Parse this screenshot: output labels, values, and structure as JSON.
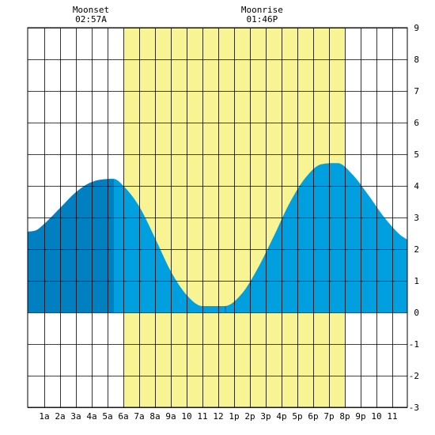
{
  "chart_data": {
    "type": "area",
    "title": "",
    "xlabel": "",
    "ylabel": "",
    "xlim": [
      -0.05,
      23.95
    ],
    "ylim": [
      -3,
      9
    ],
    "x_tick_labels": [
      {
        "x": 1,
        "label": "1a"
      },
      {
        "x": 2,
        "label": "2a"
      },
      {
        "x": 3,
        "label": "3a"
      },
      {
        "x": 4,
        "label": "4a"
      },
      {
        "x": 5,
        "label": "5a"
      },
      {
        "x": 6,
        "label": "6a"
      },
      {
        "x": 7,
        "label": "7a"
      },
      {
        "x": 8,
        "label": "8a"
      },
      {
        "x": 9,
        "label": "9a"
      },
      {
        "x": 10,
        "label": "10"
      },
      {
        "x": 11,
        "label": "11"
      },
      {
        "x": 12,
        "label": "12"
      },
      {
        "x": 13,
        "label": "1p"
      },
      {
        "x": 14,
        "label": "2p"
      },
      {
        "x": 15,
        "label": "3p"
      },
      {
        "x": 16,
        "label": "4p"
      },
      {
        "x": 17,
        "label": "5p"
      },
      {
        "x": 18,
        "label": "6p"
      },
      {
        "x": 19,
        "label": "7p"
      },
      {
        "x": 20,
        "label": "8p"
      },
      {
        "x": 21,
        "label": "9p"
      },
      {
        "x": 22,
        "label": "10"
      },
      {
        "x": 23,
        "label": "11"
      }
    ],
    "y_ticks": [
      -3,
      -2,
      -1,
      0,
      1,
      2,
      3,
      4,
      5,
      6,
      7,
      8,
      9
    ],
    "grid": true,
    "series": [
      {
        "points": [
          [
            -0.05,
            2.55
          ],
          [
            0.5,
            2.6
          ],
          [
            1.0,
            2.8
          ],
          [
            2.0,
            3.3
          ],
          [
            3.0,
            3.8
          ],
          [
            4.0,
            4.12
          ],
          [
            5.4,
            4.22
          ],
          [
            6.0,
            4.0
          ],
          [
            7.0,
            3.35
          ],
          [
            8.0,
            2.35
          ],
          [
            9.0,
            1.3
          ],
          [
            10.0,
            0.55
          ],
          [
            11.0,
            0.2
          ],
          [
            12.4,
            0.2
          ],
          [
            13.5,
            0.6
          ],
          [
            14.5,
            1.4
          ],
          [
            15.5,
            2.4
          ],
          [
            16.5,
            3.45
          ],
          [
            17.5,
            4.25
          ],
          [
            18.5,
            4.68
          ],
          [
            19.55,
            4.72
          ],
          [
            20.5,
            4.35
          ],
          [
            21.5,
            3.7
          ],
          [
            22.5,
            3.0
          ],
          [
            23.5,
            2.45
          ],
          [
            23.95,
            2.3
          ]
        ]
      }
    ],
    "daylight": {
      "start": 6.02,
      "end": 20.0
    },
    "night_shading": [
      [
        -0.05,
        5.4
      ],
      [
        12.4,
        12.5
      ],
      [
        19.55,
        19.55
      ]
    ],
    "annotations": [
      {
        "x": 3.95,
        "name": "Moonset",
        "time": "02:57A"
      },
      {
        "x": 14.77,
        "name": "Moonrise",
        "time": "01:46P"
      }
    ],
    "colors": {
      "daylight": "#f8f494",
      "tide_day": "#00a0e0",
      "tide_night": "#0080c0",
      "grid": "#000000",
      "background": "#ffffff"
    }
  }
}
